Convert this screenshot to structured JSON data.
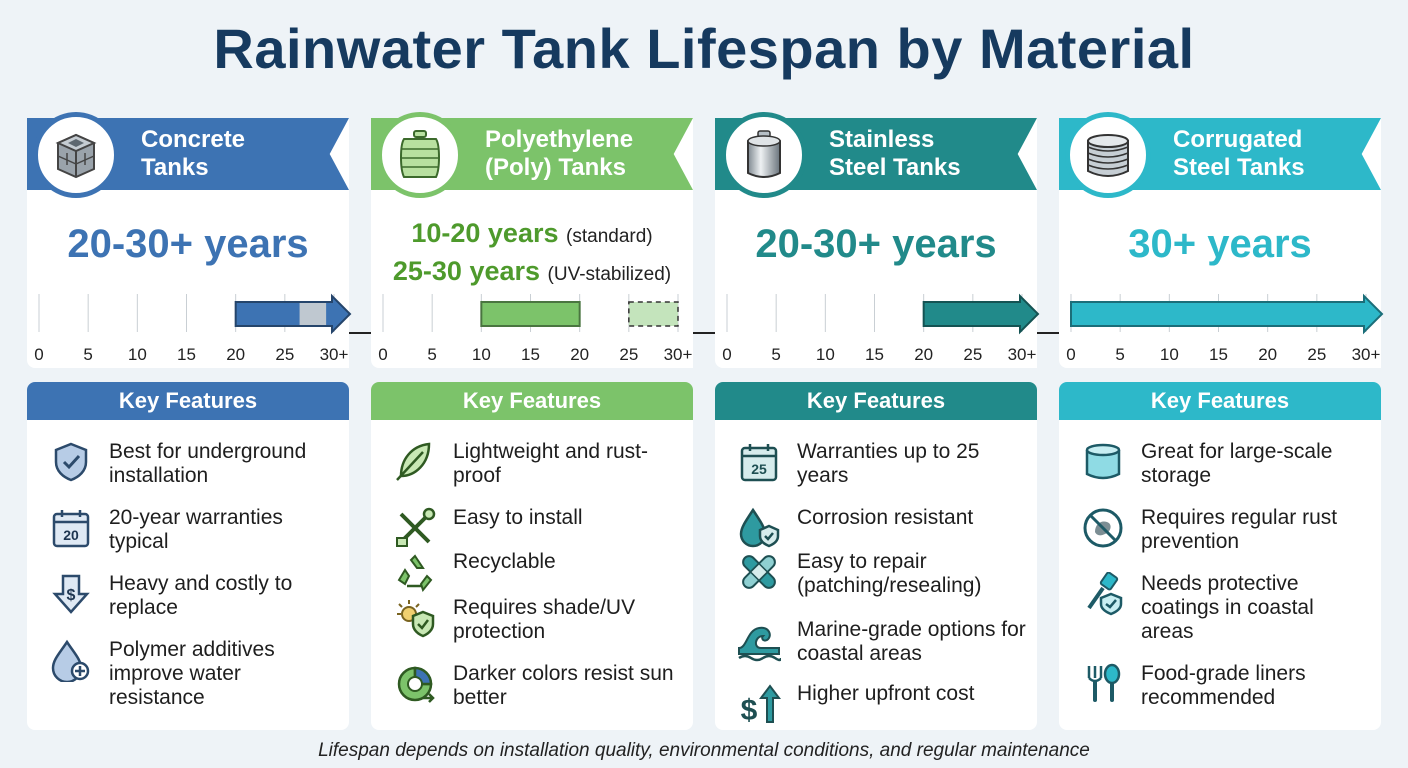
{
  "title": "Rainwater Tank Lifespan by Material",
  "footer": "Lifespan depends on installation quality, environmental conditions, and regular maintenance",
  "section_heading": "Key Features",
  "axis_ticks": [
    "0",
    "5",
    "10",
    "15",
    "20",
    "25",
    "30+"
  ],
  "columns": [
    {
      "name_line1": "Concrete",
      "name_line2": "Tanks",
      "color": "#3d73b3",
      "lifespan": "20-30+ years",
      "bars": [
        {
          "from": 20,
          "to": 30,
          "style": "arrow"
        }
      ],
      "features": [
        {
          "icon": "shield-check-icon",
          "text": "Best for underground installation"
        },
        {
          "icon": "calendar-20-icon",
          "text": "20-year warranties typical"
        },
        {
          "icon": "down-arrow-dollar-icon",
          "text": "Heavy and costly to replace"
        },
        {
          "icon": "water-drop-plus-icon",
          "text": "Polymer additives improve water resistance"
        }
      ]
    },
    {
      "name_line1": "Polyethylene",
      "name_line2": "(Poly) Tanks",
      "color": "#7cc36a",
      "lifespan_lines": [
        {
          "value": "10-20 years",
          "note": "(standard)"
        },
        {
          "value": "25-30 years",
          "note": "(UV-stabilized)"
        }
      ],
      "bars": [
        {
          "from": 10,
          "to": 20,
          "style": "solid"
        },
        {
          "from": 25,
          "to": 30,
          "style": "dashed"
        }
      ],
      "features": [
        {
          "icon": "feather-icon",
          "text": "Lightweight and rust-proof"
        },
        {
          "icon": "wrench-screwdriver-icon",
          "text": "Easy to install"
        },
        {
          "icon": "recycle-icon",
          "text": "Recyclable"
        },
        {
          "icon": "sun-shield-icon",
          "text": "Requires shade/UV protection"
        },
        {
          "icon": "color-gauge-icon",
          "text": "Darker colors resist sun better"
        }
      ]
    },
    {
      "name_line1": "Stainless",
      "name_line2": "Steel Tanks",
      "color": "#218a8a",
      "lifespan": "20-30+ years",
      "bars": [
        {
          "from": 20,
          "to": 30,
          "style": "arrow"
        }
      ],
      "features": [
        {
          "icon": "calendar-25-icon",
          "text": "Warranties up to 25 years"
        },
        {
          "icon": "drop-shield-icon",
          "text": "Corrosion resistant"
        },
        {
          "icon": "bandage-icon",
          "text": "Easy to repair (patching/resealing)"
        },
        {
          "icon": "wave-icon",
          "text": "Marine-grade options for coastal areas"
        },
        {
          "icon": "dollar-up-icon",
          "text": "Higher upfront cost"
        }
      ]
    },
    {
      "name_line1": "Corrugated",
      "name_line2": "Steel Tanks",
      "color": "#2db8c9",
      "lifespan": "30+ years",
      "bars": [
        {
          "from": 0,
          "to": 30,
          "style": "arrow"
        }
      ],
      "features": [
        {
          "icon": "cylinder-icon",
          "text": "Great for large-scale storage"
        },
        {
          "icon": "no-rust-icon",
          "text": "Requires regular rust prevention"
        },
        {
          "icon": "paint-brush-shield-icon",
          "text": "Needs protective coatings in coastal areas"
        },
        {
          "icon": "fork-spoon-icon",
          "text": "Food-grade liners recommended"
        }
      ]
    }
  ]
}
